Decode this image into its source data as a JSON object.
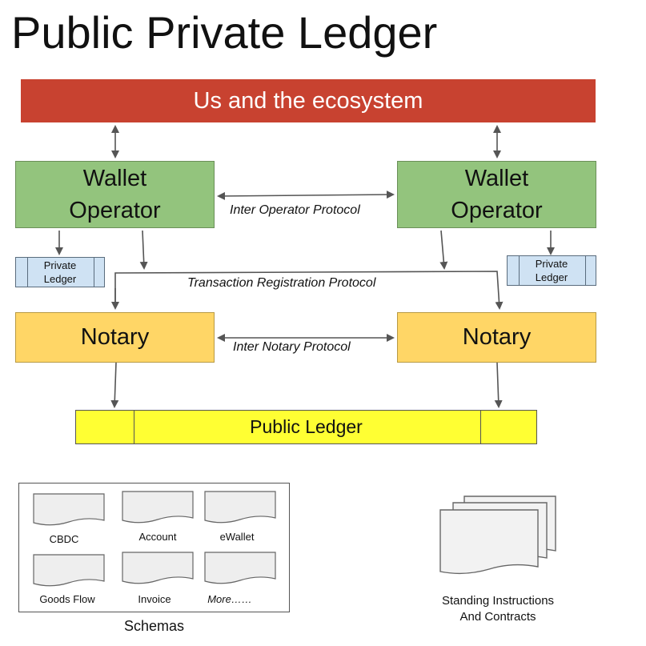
{
  "title": "Public Private Ledger",
  "ecosystem": {
    "label": "Us and the ecosystem"
  },
  "wallet_operators": [
    {
      "line1": "Wallet",
      "line2": "Operator"
    },
    {
      "line1": "Wallet",
      "line2": "Operator"
    }
  ],
  "private_ledgers": [
    {
      "line1": "Private",
      "line2": "Ledger"
    },
    {
      "line1": "Private",
      "line2": "Ledger"
    }
  ],
  "notaries": [
    {
      "label": "Notary"
    },
    {
      "label": "Notary"
    }
  ],
  "protocols": {
    "inter_operator": "Inter Operator Protocol",
    "transaction_registration": "Transaction Registration Protocol",
    "inter_notary": "Inter Notary Protocol"
  },
  "public_ledger": {
    "label": "Public Ledger"
  },
  "schemas": {
    "caption": "Schemas",
    "items": [
      "CBDC",
      "Account",
      "eWallet",
      "Goods Flow",
      "Invoice",
      "More……"
    ]
  },
  "standing_instructions": {
    "line1": "Standing Instructions",
    "line2": "And Contracts"
  },
  "colors": {
    "ecosystem": "#c84230",
    "wallet_operator": "#93c47d",
    "notary": "#ffd666",
    "private_ledger": "#cfe2f3",
    "public_ledger": "#ffff33"
  }
}
